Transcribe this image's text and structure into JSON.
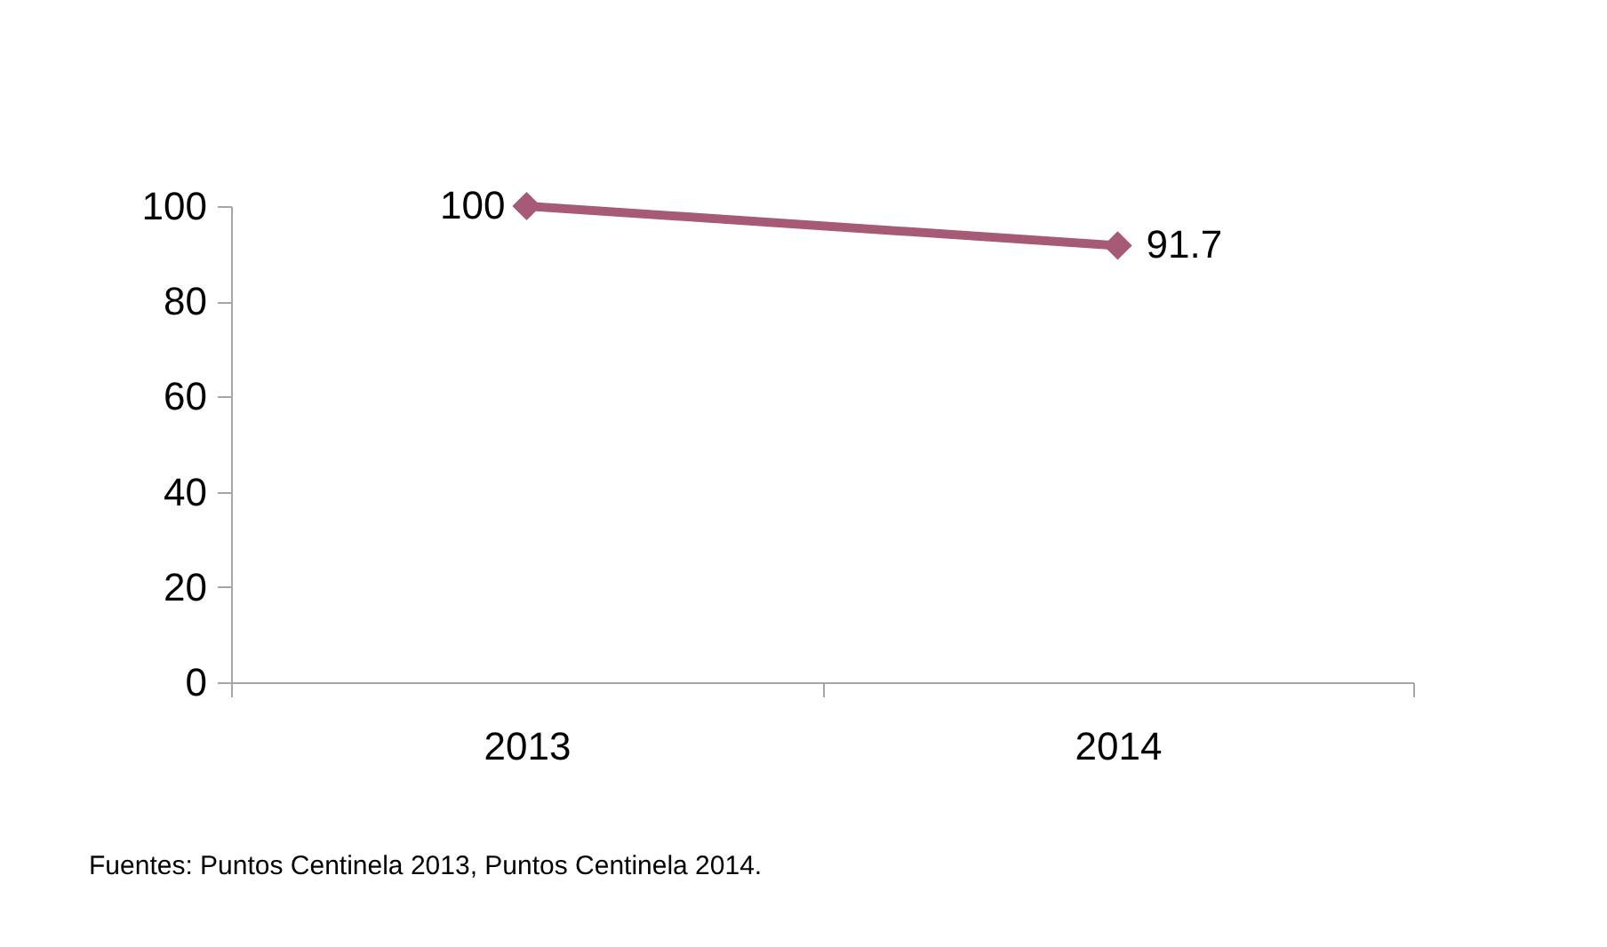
{
  "chart_data": {
    "type": "line",
    "categories": [
      "2013",
      "2014"
    ],
    "series": [
      {
        "color": "#a65a76",
        "values": [
          100,
          91.7
        ]
      }
    ],
    "ylim": [
      0,
      100
    ],
    "yticks": [
      0,
      20,
      40,
      60,
      80,
      100
    ],
    "marker": "diamond",
    "line_style": "solid",
    "data_labels": true,
    "annotations": [
      "Fuentes: Puntos Centinela 2013, Puntos Centinela 2014."
    ]
  }
}
